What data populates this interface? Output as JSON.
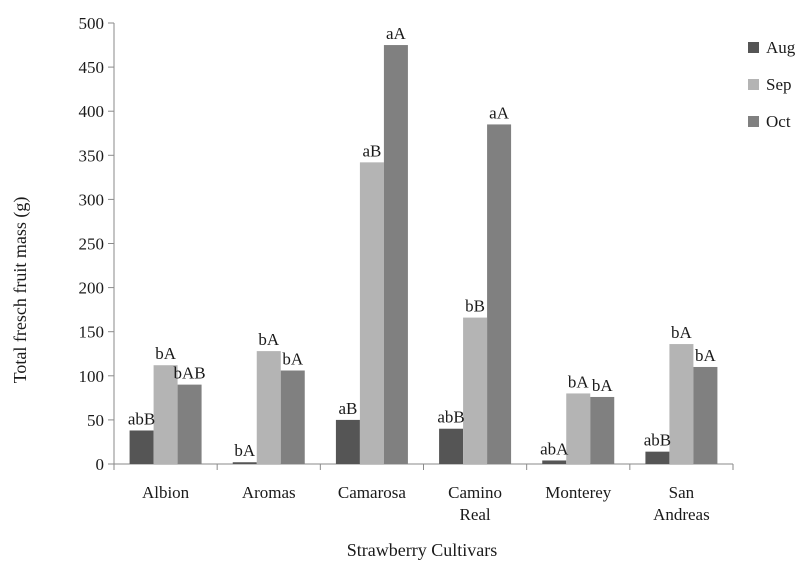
{
  "chart_data": {
    "type": "bar",
    "title": "",
    "xlabel": "Strawberry Cultivars",
    "ylabel": "Total fresch fruit mass (g)",
    "ylim": [
      0,
      500
    ],
    "yticks": [
      0,
      50,
      100,
      150,
      200,
      250,
      300,
      350,
      400,
      450,
      500
    ],
    "grid": false,
    "legend_position": "top-right",
    "categories": [
      [
        "Albion"
      ],
      [
        "Aromas"
      ],
      [
        "Camarosa"
      ],
      [
        "Camino",
        "Real"
      ],
      [
        "Monterey"
      ],
      [
        "San",
        "Andreas"
      ]
    ],
    "series": [
      {
        "name": "Aug",
        "color": "#555555",
        "values": [
          38,
          2,
          50,
          40,
          4,
          14
        ],
        "labels": [
          "abB",
          "bA",
          "aB",
          "abB",
          "abA",
          "abB"
        ]
      },
      {
        "name": "Sep",
        "color": "#b4b4b4",
        "values": [
          112,
          128,
          342,
          166,
          80,
          136
        ],
        "labels": [
          "bA",
          "bA",
          "aB",
          "bB",
          "bA",
          "bA"
        ]
      },
      {
        "name": "Oct",
        "color": "#808080",
        "values": [
          90,
          106,
          475,
          385,
          76,
          110
        ],
        "labels": [
          "bAB",
          "bA",
          "aA",
          "aA",
          "bA",
          "bA"
        ]
      }
    ]
  }
}
